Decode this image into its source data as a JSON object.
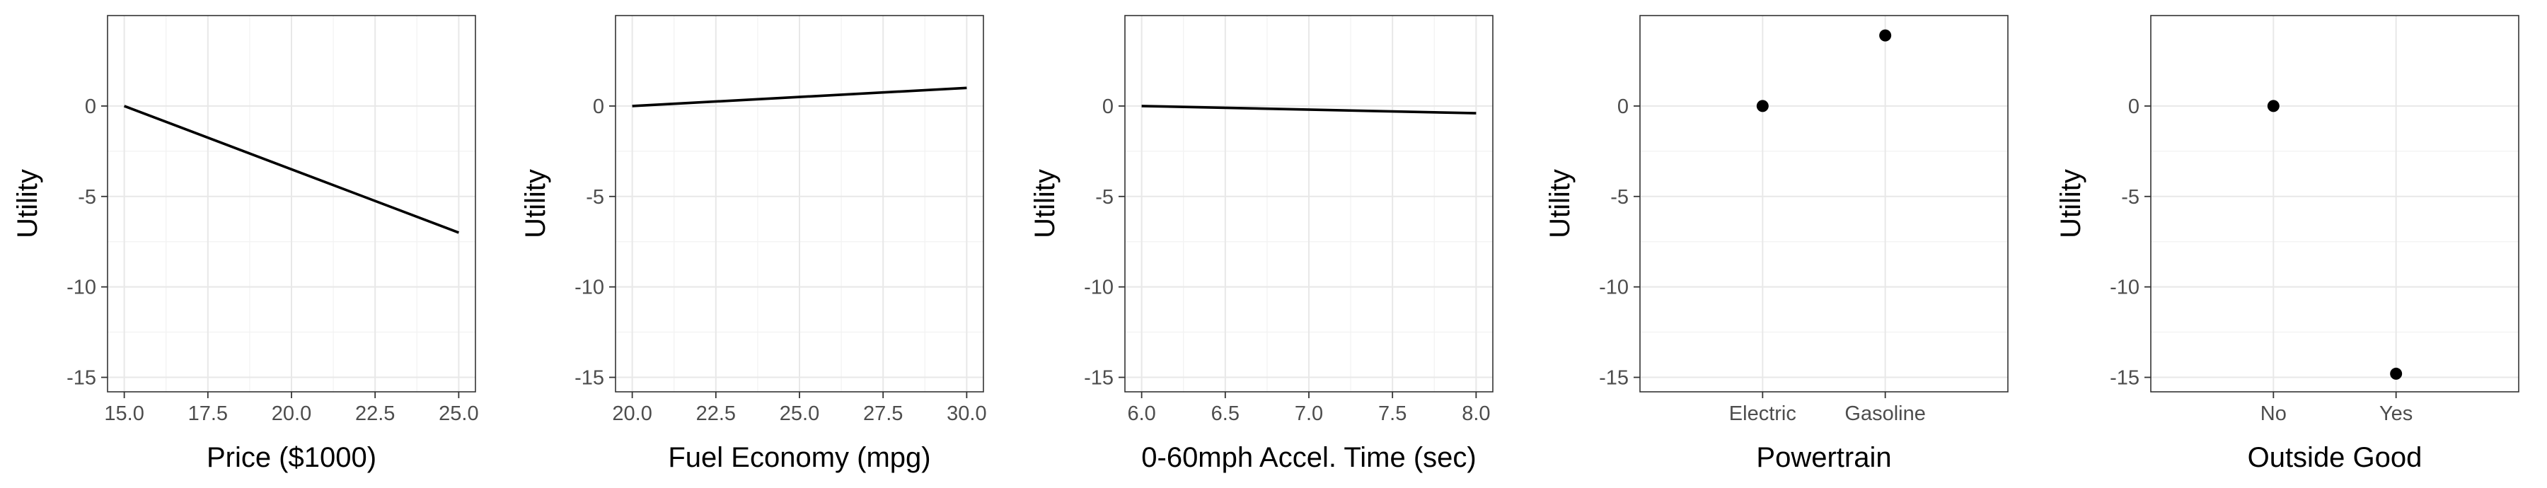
{
  "chart_data": [
    {
      "type": "line",
      "title": "",
      "xlabel": "Price ($1000)",
      "ylabel": "Utility",
      "x": [
        15.0,
        25.0
      ],
      "y": [
        0,
        -7.0
      ],
      "xlim": [
        14.5,
        25.5
      ],
      "ylim": [
        -15.8,
        5.0
      ],
      "xticks": [
        15.0,
        17.5,
        20.0,
        22.5,
        25.0
      ],
      "xtick_labels": [
        "15.0",
        "17.5",
        "20.0",
        "22.5",
        "25.0"
      ],
      "yticks": [
        0,
        -5,
        -10,
        -15
      ],
      "ytick_labels": [
        "0",
        "-5",
        "-10",
        "-15"
      ],
      "grid": true
    },
    {
      "type": "line",
      "title": "",
      "xlabel": "Fuel Economy (mpg)",
      "ylabel": "Utility",
      "x": [
        20.0,
        30.0
      ],
      "y": [
        0,
        1.0
      ],
      "xlim": [
        19.5,
        30.5
      ],
      "ylim": [
        -15.8,
        5.0
      ],
      "xticks": [
        20.0,
        22.5,
        25.0,
        27.5,
        30.0
      ],
      "xtick_labels": [
        "20.0",
        "22.5",
        "25.0",
        "27.5",
        "30.0"
      ],
      "yticks": [
        0,
        -5,
        -10,
        -15
      ],
      "ytick_labels": [
        "0",
        "-5",
        "-10",
        "-15"
      ],
      "grid": true
    },
    {
      "type": "line",
      "title": "",
      "xlabel": "0-60mph Accel. Time (sec)",
      "ylabel": "Utility",
      "x": [
        6.0,
        8.0
      ],
      "y": [
        0,
        -0.4
      ],
      "xlim": [
        5.9,
        8.1
      ],
      "ylim": [
        -15.8,
        5.0
      ],
      "xticks": [
        6.0,
        6.5,
        7.0,
        7.5,
        8.0
      ],
      "xtick_labels": [
        "6.0",
        "6.5",
        "7.0",
        "7.5",
        "8.0"
      ],
      "yticks": [
        0,
        -5,
        -10,
        -15
      ],
      "ytick_labels": [
        "0",
        "-5",
        "-10",
        "-15"
      ],
      "grid": true
    },
    {
      "type": "scatter",
      "title": "",
      "xlabel": "Powertrain",
      "ylabel": "Utility",
      "categories": [
        "Electric",
        "Gasoline"
      ],
      "values": [
        0,
        3.9
      ],
      "ylim": [
        -15.8,
        5.0
      ],
      "yticks": [
        0,
        -5,
        -10,
        -15
      ],
      "ytick_labels": [
        "0",
        "-5",
        "-10",
        "-15"
      ],
      "grid": true
    },
    {
      "type": "scatter",
      "title": "",
      "xlabel": "Outside Good",
      "ylabel": "Utility",
      "categories": [
        "No",
        "Yes"
      ],
      "values": [
        0,
        -14.8
      ],
      "ylim": [
        -15.8,
        5.0
      ],
      "yticks": [
        0,
        -5,
        -10,
        -15
      ],
      "ytick_labels": [
        "0",
        "-5",
        "-10",
        "-15"
      ],
      "grid": true
    }
  ]
}
